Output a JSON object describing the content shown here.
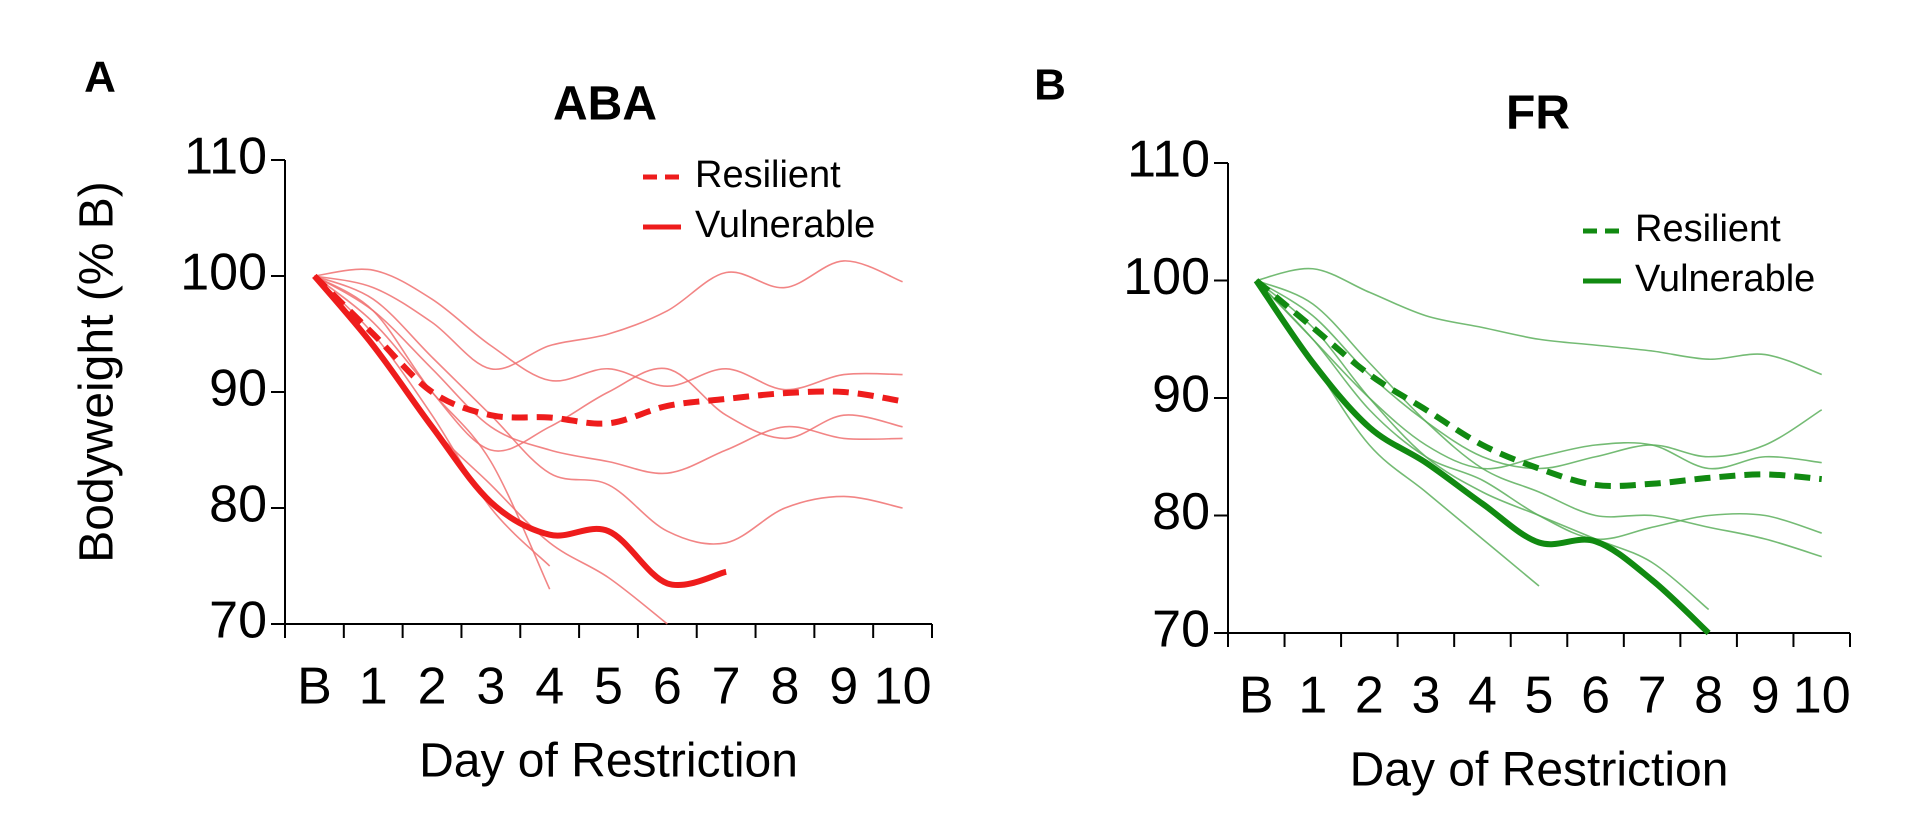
{
  "chart_data": [
    {
      "type": "line",
      "panel_label": "A",
      "title": "ABA",
      "y_label": "Bodyweight (% B)",
      "x_label": "Day of Restriction",
      "categories": [
        "B",
        "1",
        "2",
        "3",
        "4",
        "5",
        "6",
        "7",
        "8",
        "9",
        "10"
      ],
      "ylim": [
        70,
        110
      ],
      "yticks": [
        70,
        80,
        90,
        100,
        110
      ],
      "series": [
        {
          "name": "Resilient",
          "color": "#ee1c1c",
          "style": "dashed",
          "values": [
            100,
            95,
            90,
            88,
            87.8,
            87.3,
            88.8,
            89.4,
            89.9,
            90,
            89.2
          ]
        },
        {
          "name": "Vulnerable",
          "color": "#ee1c1c",
          "style": "solid",
          "values": [
            100,
            94,
            87,
            80.5,
            77.7,
            78,
            73.5,
            74.5,
            null,
            null,
            null
          ]
        }
      ],
      "individual_lines": {
        "color": "#f07070",
        "lines": [
          [
            100,
            100.5,
            98,
            94,
            91,
            92,
            90.5,
            92,
            90.2,
            91.5,
            91.5
          ],
          [
            100,
            99,
            96,
            92,
            94,
            95,
            97,
            100.3,
            99,
            101.3,
            99.5
          ],
          [
            100,
            97,
            92,
            87,
            85,
            84,
            83,
            85,
            87,
            86,
            86
          ],
          [
            100,
            96,
            90,
            84,
            73,
            null,
            null,
            null,
            null,
            null,
            null
          ],
          [
            100,
            95,
            88,
            80,
            75,
            null,
            null,
            null,
            null,
            null,
            null
          ],
          [
            100,
            98,
            93,
            88,
            83,
            82,
            78,
            77,
            80,
            81,
            80
          ],
          [
            100,
            97,
            90,
            85,
            87,
            90,
            92,
            88,
            86,
            88,
            87
          ],
          [
            100,
            94,
            87,
            82,
            77,
            74,
            70,
            null,
            null,
            null,
            null
          ]
        ]
      }
    },
    {
      "type": "line",
      "panel_label": "B",
      "title": "FR",
      "x_label": "Day of Restriction",
      "categories": [
        "B",
        "1",
        "2",
        "3",
        "4",
        "5",
        "6",
        "7",
        "8",
        "9",
        "10"
      ],
      "ylim": [
        70,
        110
      ],
      "yticks": [
        70,
        80,
        90,
        100,
        110
      ],
      "series": [
        {
          "name": "Resilient",
          "color": "#118a11",
          "style": "dashed",
          "values": [
            100,
            96,
            92,
            89,
            86,
            84,
            82.6,
            82.7,
            83.2,
            83.5,
            83.1
          ]
        },
        {
          "name": "Vulnerable",
          "color": "#118a11",
          "style": "solid",
          "values": [
            100,
            93,
            87.5,
            84.5,
            81,
            77.7,
            77.8,
            74.5,
            70,
            null,
            null
          ]
        }
      ],
      "individual_lines": {
        "color": "#5caf5c",
        "lines": [
          [
            100,
            101,
            99,
            97,
            96,
            95,
            94.5,
            94,
            93.3,
            93.7,
            92
          ],
          [
            100,
            95,
            89,
            85,
            83,
            80,
            78,
            79,
            80,
            80,
            78.5
          ],
          [
            100,
            93,
            86,
            82,
            78,
            74,
            null,
            null,
            null,
            null,
            null
          ],
          [
            100,
            97,
            92,
            88,
            85,
            84,
            85,
            86,
            85,
            86,
            89
          ],
          [
            100,
            96,
            90,
            85,
            82,
            80,
            78,
            76,
            72,
            null,
            null
          ],
          [
            100,
            98,
            93,
            88,
            84,
            82,
            80,
            80,
            79,
            78,
            76.5
          ],
          [
            100,
            95,
            90,
            86,
            84,
            85,
            86,
            86,
            84,
            85,
            84.5
          ]
        ]
      }
    }
  ]
}
